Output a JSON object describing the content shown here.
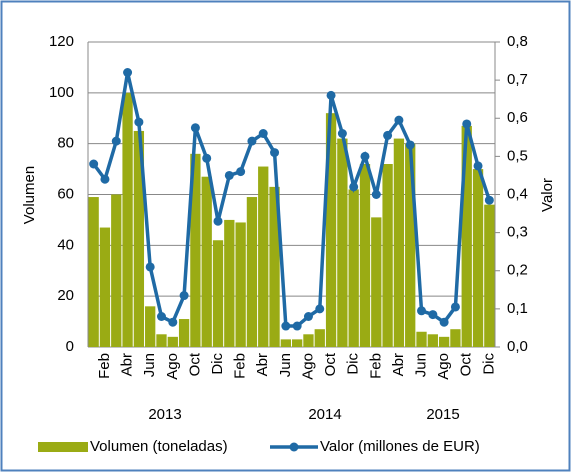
{
  "chart_data": {
    "type": "bar_line",
    "categories": [
      null,
      "Feb",
      null,
      "Abr",
      null,
      "Jun",
      null,
      "Ago",
      null,
      "Oct",
      null,
      "Dic",
      null,
      "Feb",
      null,
      "Abr",
      null,
      "Jun",
      null,
      "Ago",
      null,
      "Oct",
      null,
      "Dic",
      null,
      "Feb",
      null,
      "Abr",
      null,
      "Jun",
      null,
      "Ago",
      null,
      "Oct",
      null,
      "Dic"
    ],
    "year_groups": [
      "2013",
      "2014",
      "2015"
    ],
    "ylabel": "Volumen",
    "y2label": "Valor",
    "ylim": [
      0,
      120
    ],
    "yticks": [
      0,
      20,
      40,
      60,
      80,
      100,
      120
    ],
    "y2lim": [
      0,
      0.8
    ],
    "y2ticks": [
      {
        "value": 0,
        "label": "0,0"
      },
      {
        "value": 0.1,
        "label": "0,1"
      },
      {
        "value": 0.2,
        "label": "0,2"
      },
      {
        "value": 0.3,
        "label": "0,3"
      },
      {
        "value": 0.4,
        "label": "0,4"
      },
      {
        "value": 0.5,
        "label": "0,5"
      },
      {
        "value": 0.6,
        "label": "0,6"
      },
      {
        "value": 0.7,
        "label": "0,7"
      },
      {
        "value": 0.8,
        "label": "0,8"
      }
    ],
    "grid": true,
    "series": [
      {
        "name": "Volumen (toneladas)",
        "kind": "bar",
        "color": "#9aab14",
        "values": [
          59,
          47,
          60,
          100,
          85,
          16,
          5,
          4,
          11,
          76,
          67,
          42,
          50,
          49,
          59,
          71,
          63,
          3,
          3,
          5,
          7,
          92,
          82,
          62,
          72,
          51,
          72,
          82,
          80,
          6,
          5,
          4,
          7,
          87,
          70,
          56
        ]
      },
      {
        "name": "Valor (millones de EUR)",
        "kind": "line",
        "axis": "y2",
        "color": "#1f6aa5",
        "values": [
          0.48,
          0.44,
          0.54,
          0.72,
          0.59,
          0.21,
          0.08,
          0.065,
          0.135,
          0.575,
          0.495,
          0.33,
          0.45,
          0.46,
          0.54,
          0.56,
          0.51,
          0.055,
          0.055,
          0.08,
          0.1,
          0.66,
          0.56,
          0.42,
          0.5,
          0.4,
          0.555,
          0.595,
          0.53,
          0.095,
          0.085,
          0.065,
          0.105,
          0.585,
          0.475,
          0.385
        ]
      }
    ]
  }
}
